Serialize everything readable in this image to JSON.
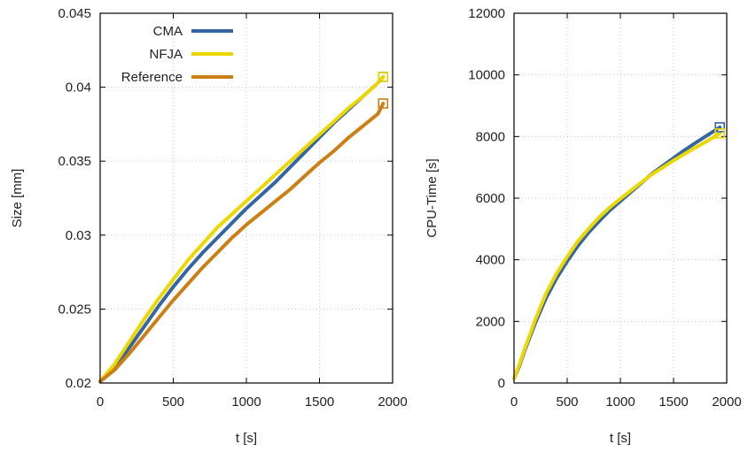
{
  "chart_data": [
    {
      "type": "line",
      "xlabel": "t [s]",
      "ylabel": "Size [mm]",
      "xlim": [
        0,
        2000
      ],
      "ylim": [
        0.02,
        0.045
      ],
      "xticks": [
        0,
        500,
        1000,
        1500,
        2000
      ],
      "xtick_labels": [
        "0",
        "500",
        "1000",
        "1500",
        "2000"
      ],
      "yticks": [
        0.02,
        0.025,
        0.03,
        0.035,
        0.04,
        0.045
      ],
      "ytick_labels": [
        "0.02",
        "0.025",
        "0.03",
        "0.035",
        "0.04",
        "0.045"
      ],
      "grid": true,
      "legend": "top-left",
      "series": [
        {
          "name": "CMA",
          "color": "#3465a4",
          "x": [
            0,
            100,
            200,
            300,
            400,
            500,
            600,
            700,
            800,
            900,
            1000,
            1100,
            1200,
            1300,
            1400,
            1500,
            1600,
            1700,
            1800,
            1900,
            1935
          ],
          "y": [
            0.0201,
            0.0211,
            0.0224,
            0.0238,
            0.0252,
            0.0265,
            0.0277,
            0.0288,
            0.0298,
            0.0308,
            0.0318,
            0.0327,
            0.0336,
            0.0346,
            0.0356,
            0.0366,
            0.0376,
            0.0385,
            0.0394,
            0.0403,
            0.0407
          ]
        },
        {
          "name": "NFJA",
          "color": "#ecd800",
          "x": [
            0,
            100,
            200,
            300,
            400,
            500,
            600,
            700,
            800,
            900,
            1000,
            1100,
            1200,
            1300,
            1400,
            1500,
            1600,
            1700,
            1800,
            1900,
            1935
          ],
          "y": [
            0.0201,
            0.0213,
            0.0228,
            0.0243,
            0.0257,
            0.027,
            0.0283,
            0.0294,
            0.0305,
            0.0314,
            0.0323,
            0.0332,
            0.0341,
            0.035,
            0.0359,
            0.0368,
            0.0377,
            0.0386,
            0.0394,
            0.0403,
            0.0407
          ]
        },
        {
          "name": "Reference",
          "color": "#cc7f15",
          "x": [
            0,
            100,
            200,
            300,
            400,
            500,
            600,
            700,
            800,
            900,
            1000,
            1100,
            1200,
            1300,
            1400,
            1500,
            1600,
            1700,
            1800,
            1900,
            1935
          ],
          "y": [
            0.0201,
            0.0209,
            0.022,
            0.0232,
            0.0244,
            0.0256,
            0.0267,
            0.0278,
            0.0288,
            0.0298,
            0.0307,
            0.0315,
            0.0323,
            0.0331,
            0.034,
            0.0349,
            0.0357,
            0.0366,
            0.0374,
            0.0382,
            0.0389
          ]
        }
      ]
    },
    {
      "type": "line",
      "xlabel": "t [s]",
      "ylabel": "CPU-Time [s]",
      "xlim": [
        0,
        2000
      ],
      "ylim": [
        0,
        12000
      ],
      "xticks": [
        0,
        500,
        1000,
        1500,
        2000
      ],
      "xtick_labels": [
        "0",
        "500",
        "1000",
        "1500",
        "2000"
      ],
      "yticks": [
        0,
        2000,
        4000,
        6000,
        8000,
        10000,
        12000
      ],
      "ytick_labels": [
        "0",
        "2000",
        "4000",
        "6000",
        "8000",
        "10000",
        "12000"
      ],
      "grid": true,
      "series": [
        {
          "color": "#3465a4",
          "x": [
            0,
            50,
            100,
            200,
            300,
            400,
            500,
            600,
            700,
            800,
            900,
            1000,
            1100,
            1200,
            1300,
            1400,
            1500,
            1600,
            1700,
            1800,
            1935
          ],
          "y": [
            150,
            550,
            1050,
            1950,
            2750,
            3400,
            3950,
            4450,
            4880,
            5250,
            5600,
            5900,
            6200,
            6500,
            6800,
            7050,
            7300,
            7550,
            7780,
            8000,
            8300
          ]
        },
        {
          "color": "#ecd800",
          "x": [
            0,
            50,
            100,
            200,
            300,
            400,
            500,
            600,
            700,
            800,
            900,
            1000,
            1100,
            1200,
            1300,
            1400,
            1500,
            1600,
            1700,
            1800,
            1935
          ],
          "y": [
            150,
            600,
            1100,
            2050,
            2900,
            3550,
            4100,
            4600,
            5000,
            5380,
            5700,
            5980,
            6250,
            6520,
            6780,
            7000,
            7220,
            7430,
            7630,
            7820,
            8100
          ]
        }
      ]
    }
  ]
}
